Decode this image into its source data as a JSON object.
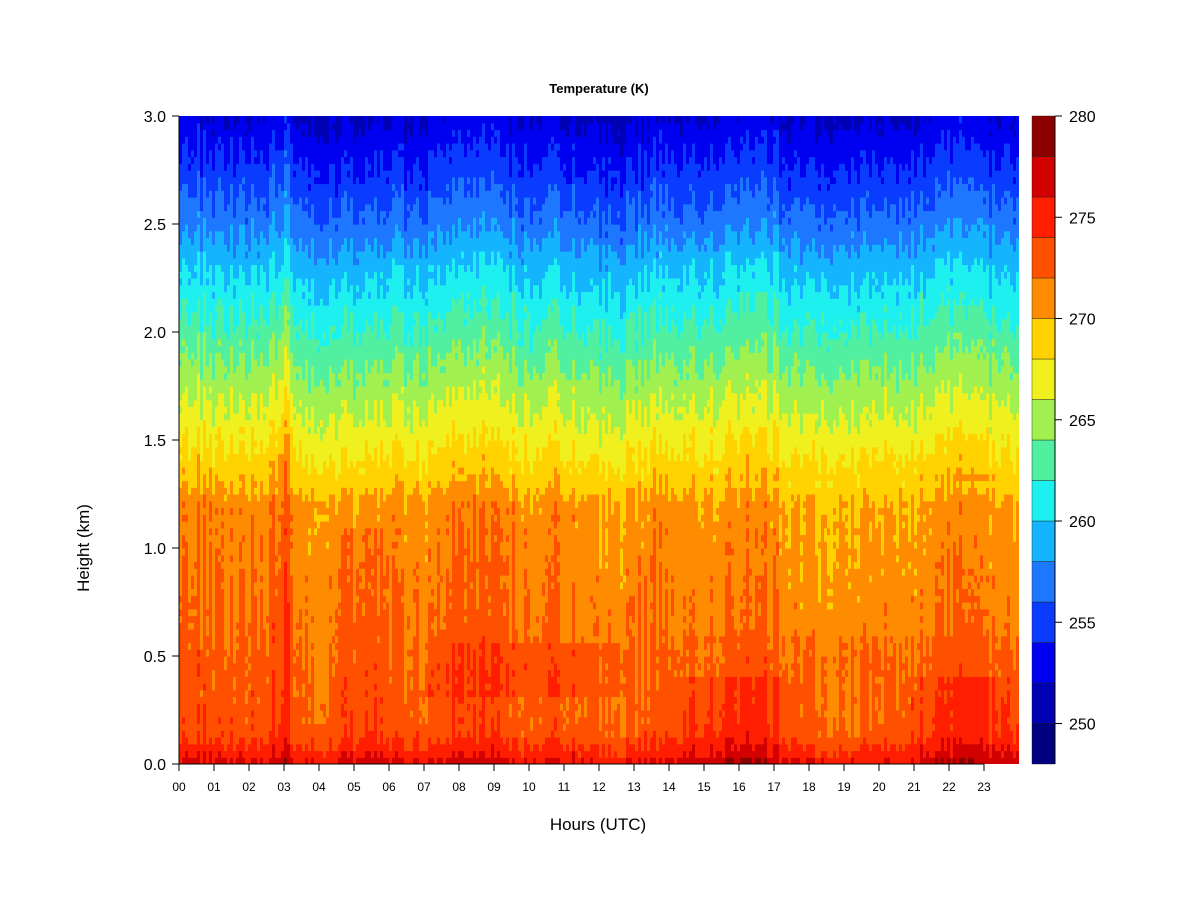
{
  "chart_data": {
    "type": "heatmap",
    "title": "Temperature (K)",
    "xlabel": "Hours (UTC)",
    "ylabel": "Height (km)",
    "x_ticks": [
      "00",
      "01",
      "02",
      "03",
      "04",
      "05",
      "06",
      "07",
      "08",
      "09",
      "10",
      "11",
      "12",
      "13",
      "14",
      "15",
      "16",
      "17",
      "18",
      "19",
      "20",
      "21",
      "22",
      "23"
    ],
    "xlim": [
      0,
      24
    ],
    "y_ticks": [
      "0.0",
      "0.5",
      "1.0",
      "1.5",
      "2.0",
      "2.5",
      "3.0"
    ],
    "ylim": [
      0.0,
      3.0
    ],
    "colorbar": {
      "ticks": [
        "250",
        "255",
        "260",
        "265",
        "270",
        "275",
        "280"
      ],
      "range": [
        248,
        280
      ],
      "levels": [
        248,
        250,
        252,
        254,
        256,
        258,
        260,
        262,
        264,
        266,
        268,
        270,
        272,
        274,
        276,
        278,
        280
      ],
      "colors": [
        "#000080",
        "#0000b4",
        "#0000f0",
        "#0a3cff",
        "#1e78ff",
        "#14b4ff",
        "#1ef0f0",
        "#50f0a0",
        "#a0f050",
        "#f0f01e",
        "#ffd200",
        "#ff8c00",
        "#ff5000",
        "#ff1e00",
        "#d20000",
        "#8c0000"
      ]
    },
    "approximate_profile": {
      "heights_km": [
        0.0,
        0.05,
        0.15,
        1.2,
        1.3,
        1.5,
        1.7,
        1.9,
        2.1,
        2.3,
        2.5,
        2.7,
        2.9,
        3.0
      ],
      "temperature_K": [
        276.5,
        275,
        273,
        271,
        269.5,
        267.5,
        265.5,
        263.5,
        261.5,
        259.5,
        257,
        255,
        253,
        252
      ]
    },
    "features": [
      {
        "hours": [
          2.7,
          3.3
        ],
        "label": "warm plume extending to top near 03 UTC"
      },
      {
        "hours": [
          4.5,
          6.0
        ],
        "label": "warmer layer below 1.1 km"
      }
    ],
    "grid": false,
    "legend": "colorbar-right"
  }
}
